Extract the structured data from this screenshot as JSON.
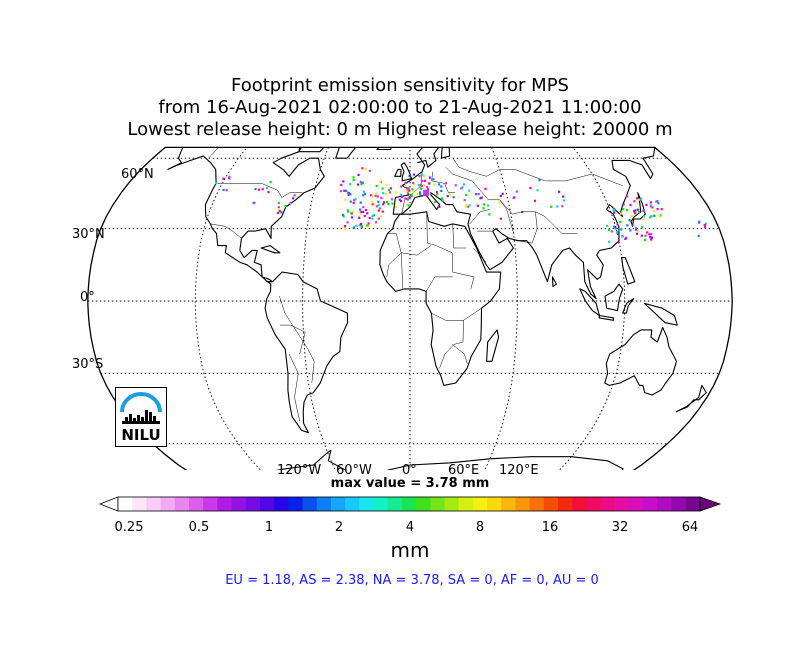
{
  "title": {
    "line1": "Footprint emission sensitivity for MPS",
    "line2": "from 16-Aug-2021 02:00:00 to 21-Aug-2021 11:00:00",
    "line3": "Lowest release height: 0 m      Highest release height: 20000 m"
  },
  "map": {
    "projection": "Robinson",
    "lat_labels": [
      "60°N",
      "30°N",
      "0°",
      "30°S"
    ],
    "lon_labels": [
      "120°W",
      "60°W",
      "0°",
      "60°E",
      "120°E"
    ],
    "logo": "NILU",
    "max_value_text": "max value = 3.78 mm"
  },
  "colorbar": {
    "ticks": [
      "0.25",
      "0.5",
      "1",
      "2",
      "4",
      "8",
      "16",
      "32",
      "64"
    ],
    "units": "mm",
    "colors": [
      "#ffffff",
      "#fde6fb",
      "#f9ccf7",
      "#f2aaf2",
      "#e985ef",
      "#dc5fec",
      "#cc39ea",
      "#b21ae8",
      "#9411e6",
      "#750ce6",
      "#5008e6",
      "#2a06e6",
      "#0a20ea",
      "#0b4ef0",
      "#0f7df6",
      "#15a6fb",
      "#18c8fd",
      "#19e6ef",
      "#16f0c6",
      "#15ec8f",
      "#1ae450",
      "#3fe020",
      "#73e416",
      "#a6ea12",
      "#d5f010",
      "#f3f00e",
      "#fad90c",
      "#f9b80b",
      "#f8960a",
      "#f77209",
      "#f64c08",
      "#f42a10",
      "#f20f38",
      "#ef0a62",
      "#ec0b86",
      "#e60ca6",
      "#da0dbd",
      "#c80ccc",
      "#b00bc2",
      "#9409ad",
      "#770693"
    ]
  },
  "regions_text": "EU = 1.18,  AS = 2.38,  NA = 3.78,  SA = 0,  AF = 0,  AU = 0",
  "sensitivity_colors": [
    "#cc39ea",
    "#ff00aa",
    "#00e600",
    "#f3f00e",
    "#0f7df6",
    "#9411e6",
    "#18c8fd"
  ]
}
